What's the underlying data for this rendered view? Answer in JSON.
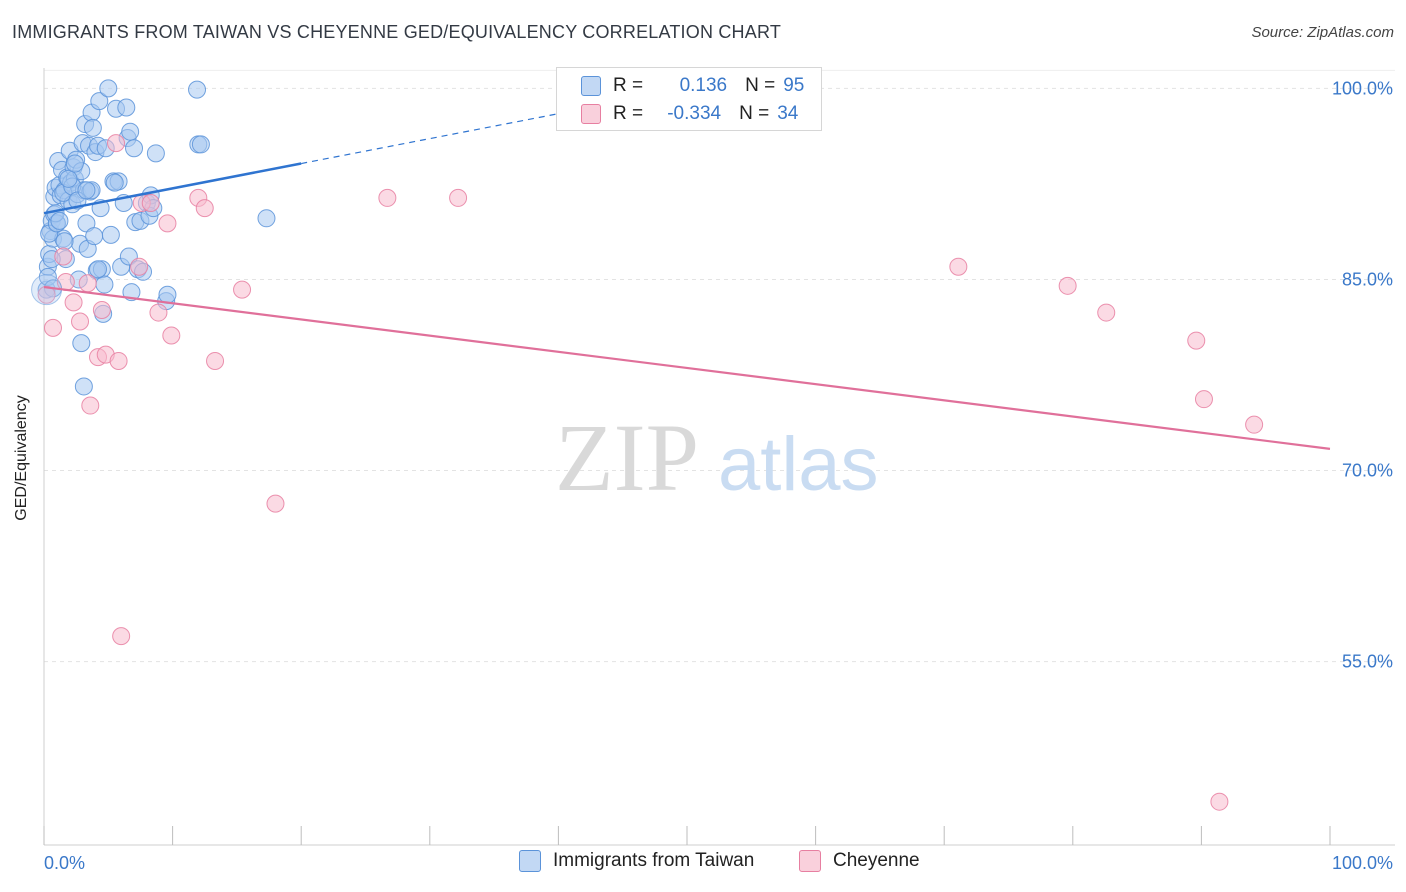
{
  "title": "IMMIGRANTS FROM TAIWAN VS CHEYENNE GED/EQUIVALENCY CORRELATION CHART",
  "source": "Source: ZipAtlas.com",
  "watermark": {
    "zip": "ZIP",
    "atlas": "atlas"
  },
  "legend": {
    "r_label": "R =",
    "n_label": "N =",
    "rows": [
      {
        "r": " 0.136",
        "n": "95",
        "color": "#a8c8f0",
        "stroke": "#5b93d9"
      },
      {
        "r": "-0.334",
        "n": "34",
        "color": "#f7bccd",
        "stroke": "#e77fa1"
      }
    ]
  },
  "bottom_legend": {
    "series1": "Immigrants from Taiwan",
    "series2": "Cheyenne"
  },
  "chart_data": {
    "type": "scatter",
    "title": "IMMIGRANTS FROM TAIWAN VS CHEYENNE GED/EQUIVALENCY CORRELATION CHART",
    "xlabel": "",
    "ylabel": "GED/Equivalency",
    "xlim": [
      0,
      100
    ],
    "ylim": [
      41,
      102
    ],
    "x_tick_labels": [
      "0.0%",
      "100.0%"
    ],
    "y_ticks": [
      100,
      85,
      70,
      55
    ],
    "y_tick_labels": [
      "100.0%",
      "85.0%",
      "70.0%",
      "55.0%"
    ],
    "series": [
      {
        "name": "Immigrants from Taiwan",
        "color": "#5b93d9",
        "fill": "#a8c8f0",
        "trend": {
          "x0": 0,
          "y0": 90.2,
          "x1": 20,
          "y1": 94.1,
          "dash_to_x": 43,
          "dash_to_y": 98.6
        },
        "points": [
          [
            0.2,
            84.2
          ],
          [
            0.3,
            86.0
          ],
          [
            0.4,
            87.0
          ],
          [
            0.5,
            88.8
          ],
          [
            0.6,
            89.6
          ],
          [
            0.7,
            88.2
          ],
          [
            0.8,
            90.1
          ],
          [
            0.8,
            91.5
          ],
          [
            0.9,
            92.2
          ],
          [
            1.0,
            89.4
          ],
          [
            1.1,
            94.3
          ],
          [
            1.2,
            92.4
          ],
          [
            1.3,
            91.6
          ],
          [
            1.4,
            93.6
          ],
          [
            1.5,
            88.2
          ],
          [
            1.6,
            92.0
          ],
          [
            1.7,
            86.6
          ],
          [
            1.8,
            93.0
          ],
          [
            1.9,
            91.2
          ],
          [
            2.0,
            95.1
          ],
          [
            2.1,
            92.6
          ],
          [
            2.2,
            90.9
          ],
          [
            2.3,
            93.8
          ],
          [
            2.4,
            92.9
          ],
          [
            2.5,
            94.4
          ],
          [
            2.6,
            91.7
          ],
          [
            2.7,
            85.0
          ],
          [
            2.8,
            87.8
          ],
          [
            2.9,
            93.5
          ],
          [
            3.0,
            95.7
          ],
          [
            3.1,
            92.0
          ],
          [
            3.2,
            97.2
          ],
          [
            3.3,
            89.4
          ],
          [
            3.4,
            87.4
          ],
          [
            3.5,
            95.5
          ],
          [
            3.6,
            91.9
          ],
          [
            3.7,
            98.1
          ],
          [
            3.8,
            96.9
          ],
          [
            3.9,
            88.4
          ],
          [
            4.0,
            95.0
          ],
          [
            4.1,
            85.7
          ],
          [
            4.2,
            95.5
          ],
          [
            4.3,
            99.0
          ],
          [
            4.4,
            90.6
          ],
          [
            4.5,
            85.8
          ],
          [
            4.6,
            82.3
          ],
          [
            4.7,
            84.6
          ],
          [
            4.8,
            95.3
          ],
          [
            5.0,
            100.0
          ],
          [
            5.2,
            88.5
          ],
          [
            5.4,
            92.7
          ],
          [
            5.6,
            98.4
          ],
          [
            5.8,
            92.7
          ],
          [
            6.0,
            86.0
          ],
          [
            6.2,
            91.0
          ],
          [
            6.4,
            98.5
          ],
          [
            6.5,
            96.1
          ],
          [
            6.6,
            86.8
          ],
          [
            6.7,
            96.6
          ],
          [
            6.8,
            84.0
          ],
          [
            7.0,
            95.3
          ],
          [
            7.1,
            89.5
          ],
          [
            7.3,
            85.8
          ],
          [
            7.5,
            89.6
          ],
          [
            7.7,
            85.6
          ],
          [
            8.0,
            91.0
          ],
          [
            8.2,
            90.0
          ],
          [
            8.3,
            91.6
          ],
          [
            8.5,
            90.6
          ],
          [
            8.7,
            94.9
          ],
          [
            9.5,
            83.3
          ],
          [
            9.6,
            83.8
          ],
          [
            11.9,
            99.9
          ],
          [
            12.0,
            95.6
          ],
          [
            12.2,
            95.6
          ],
          [
            17.3,
            89.8
          ],
          [
            0.4,
            88.6
          ],
          [
            1.0,
            89.4
          ],
          [
            2.9,
            80.0
          ],
          [
            3.1,
            76.6
          ],
          [
            1.5,
            91.8
          ],
          [
            2.2,
            92.3
          ],
          [
            0.6,
            86.6
          ],
          [
            1.9,
            92.9
          ],
          [
            2.6,
            91.2
          ],
          [
            3.7,
            92.0
          ],
          [
            4.2,
            85.8
          ],
          [
            0.9,
            90.2
          ],
          [
            1.6,
            88.0
          ],
          [
            2.4,
            94.1
          ],
          [
            3.3,
            92.0
          ],
          [
            0.3,
            85.2
          ],
          [
            0.7,
            84.3
          ],
          [
            1.2,
            89.6
          ],
          [
            5.5,
            92.6
          ]
        ]
      },
      {
        "name": "Cheyenne",
        "color": "#e77fa1",
        "fill": "#f7bccd",
        "trend": {
          "x0": 0,
          "y0": 84.4,
          "x1": 100,
          "y1": 71.7
        },
        "points": [
          [
            0.2,
            83.8
          ],
          [
            0.7,
            81.2
          ],
          [
            1.5,
            86.8
          ],
          [
            1.7,
            84.8
          ],
          [
            2.3,
            83.2
          ],
          [
            2.8,
            81.7
          ],
          [
            3.4,
            84.7
          ],
          [
            3.6,
            75.1
          ],
          [
            4.2,
            78.9
          ],
          [
            4.5,
            82.6
          ],
          [
            4.8,
            79.1
          ],
          [
            5.6,
            95.7
          ],
          [
            5.8,
            78.6
          ],
          [
            6.0,
            57.0
          ],
          [
            7.4,
            86.0
          ],
          [
            7.6,
            91.0
          ],
          [
            8.3,
            91.0
          ],
          [
            8.9,
            82.4
          ],
          [
            9.6,
            89.4
          ],
          [
            9.9,
            80.6
          ],
          [
            12.0,
            91.4
          ],
          [
            12.5,
            90.6
          ],
          [
            13.3,
            78.6
          ],
          [
            15.4,
            84.2
          ],
          [
            18.0,
            67.4
          ],
          [
            26.7,
            91.4
          ],
          [
            32.2,
            91.4
          ],
          [
            90.2,
            75.6
          ],
          [
            94.1,
            73.6
          ],
          [
            89.6,
            80.2
          ],
          [
            71.1,
            86.0
          ],
          [
            79.6,
            84.5
          ],
          [
            82.6,
            82.4
          ],
          [
            91.4,
            44.0
          ]
        ]
      }
    ]
  }
}
